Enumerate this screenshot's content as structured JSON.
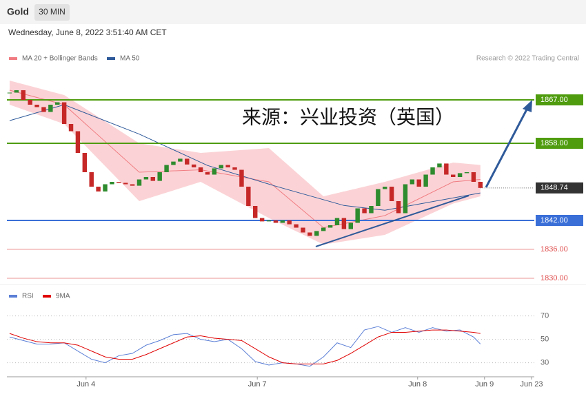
{
  "header": {
    "symbol": "Gold",
    "interval": "30 MIN",
    "timestamp": "Wednesday, June 8, 2022 3:51:40 AM CET"
  },
  "chart_data": [
    {
      "type": "candlestick",
      "annotation": "来源：兴业投资（英国）",
      "source": "Research © 2022 Trading Central",
      "up_color": "#2e8b2e",
      "down_color": "#c62828",
      "values": [
        1868.5,
        1869,
        1867,
        1866,
        1865.5,
        1864.5,
        1866,
        1866.5,
        1862,
        1860.5,
        1856,
        1852,
        1849,
        1848,
        1849.5,
        1850,
        1849.8,
        1849.5,
        1849.2,
        1850.5,
        1851,
        1850.2,
        1852,
        1853.5,
        1854.2,
        1854.8,
        1853.6,
        1853,
        1852,
        1851.5,
        1852.8,
        1853.5,
        1853,
        1852.5,
        1849,
        1845,
        1842.5,
        1841.8,
        1842,
        1841.5,
        1842,
        1841.2,
        1840.5,
        1839.5,
        1838.8,
        1839.8,
        1840.5,
        1841,
        1842.5,
        1840.2,
        1841.5,
        1844.5,
        1843.5,
        1845,
        1848.5,
        1849,
        1846,
        1843.5,
        1849.5,
        1850.5,
        1849,
        1851.5,
        1853,
        1853.8,
        1851.5,
        1851,
        1851.8,
        1852,
        1850,
        1848.74
      ],
      "series": [
        {
          "name": "MA 20 + Bollinger Bands",
          "color": "#f07c82",
          "band_color": "#fbd3d6",
          "x": [
            0,
            8,
            19,
            28,
            38,
            46,
            55,
            65,
            69
          ],
          "values": [
            1869,
            1866,
            1852,
            1852.5,
            1850,
            1840.5,
            1843,
            1850,
            1850.5
          ],
          "upper": [
            1871,
            1868,
            1858,
            1856,
            1857,
            1847,
            1850,
            1854,
            1853.5
          ],
          "lower": [
            1866,
            1862,
            1846,
            1850,
            1842.5,
            1837,
            1839,
            1845.5,
            1847
          ]
        },
        {
          "name": "MA 50",
          "color": "#2f5a9a",
          "x": [
            0,
            8,
            19,
            29,
            39,
            49,
            55,
            69
          ],
          "values": [
            1862.7,
            1866,
            1859.9,
            1853.4,
            1849.1,
            1845.1,
            1844.1,
            1847.7
          ]
        }
      ],
      "levels": [
        {
          "value": 1867,
          "label": "1867.00",
          "color": "#4f9c0f",
          "badge": true
        },
        {
          "value": 1858,
          "label": "1858.00",
          "color": "#4f9c0f",
          "badge": true
        },
        {
          "value": 1842,
          "label": "1842.00",
          "color": "#3a6fd8",
          "badge": true
        },
        {
          "value": 1836,
          "label": "1836.00",
          "color": "#e05050",
          "badge": false
        },
        {
          "value": 1830,
          "label": "1830.00",
          "color": "#e05050",
          "badge": false
        }
      ],
      "last": 1848.74,
      "last_color": "#333333",
      "xlim": [
        -0.4,
        76.9
      ],
      "ylim": [
        1829,
        1874
      ]
    },
    {
      "type": "line",
      "x": [
        0,
        2,
        4,
        6,
        8,
        10,
        12,
        14,
        16,
        18,
        20,
        22,
        24,
        26,
        28,
        30,
        32,
        34,
        36,
        38,
        40,
        42,
        44,
        46,
        48,
        50,
        52,
        54,
        56,
        58,
        60,
        62,
        64,
        66,
        68,
        69
      ],
      "series": [
        {
          "name": "RSI",
          "color": "#5b7fd6",
          "values": [
            52,
            49,
            46,
            46,
            47,
            40,
            33,
            30,
            36,
            38,
            45,
            49,
            54,
            55,
            50,
            48,
            50,
            42,
            31,
            28,
            30,
            29,
            27,
            35,
            47,
            43,
            58,
            61,
            56,
            60,
            56,
            60,
            57,
            58,
            52,
            46
          ]
        },
        {
          "name": "9MA",
          "color": "#e00000",
          "values": [
            55,
            51,
            48,
            47,
            47,
            45,
            40,
            35,
            33,
            33,
            37,
            42,
            47,
            52,
            53,
            51,
            50,
            49,
            42,
            35,
            30,
            29,
            29,
            29,
            32,
            38,
            45,
            52,
            56,
            56,
            57,
            58,
            58,
            57,
            56,
            55
          ]
        }
      ],
      "xlim": [
        -0.4,
        76.9
      ],
      "ylim": [
        18,
        81
      ],
      "yticks": [
        30,
        50,
        70
      ],
      "grid": true,
      "xticks": [
        {
          "value": 11.2,
          "label": "Jun 4"
        },
        {
          "value": 36.3,
          "label": "Jun 7"
        },
        {
          "value": 59.8,
          "label": "Jun 8"
        },
        {
          "value": 69.6,
          "label": "Jun 9"
        },
        {
          "value": 76.5,
          "label": "Jun 23"
        }
      ]
    }
  ]
}
